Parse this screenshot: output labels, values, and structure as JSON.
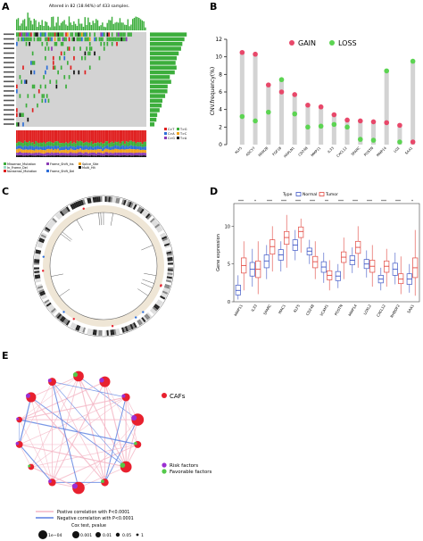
{
  "panel_letters": {
    "a": "A",
    "b": "B",
    "c": "C",
    "d": "D",
    "e": "E"
  },
  "panel_a": {
    "title": "Altered in 82 (18.94%) of 433 samples.",
    "legend": [
      "Missense_Mutation",
      "In_Frame_Del",
      "Nonsense_Mutation",
      "Frame_Shift_Ins",
      "Frame_Shift_Del",
      "Splice_Site",
      "Multi_Hit",
      "C>T",
      "T>G",
      "C>A",
      "T>C",
      "C>G",
      "T>A"
    ],
    "colors": {
      "missense": "#3cae3c",
      "nonsense": "#e02020",
      "frame_del": "#2e6fd8",
      "frame_ins": "#8a3bb5",
      "splice": "#f2a21a",
      "multi": "#111111",
      "inframe": "#9cd9c6",
      "bg": "#cfcfcf"
    }
  },
  "panel_d": {
    "legend_title": "Type",
    "legend_items": [
      "Normal",
      "Tumor"
    ],
    "colors": {
      "normal": "#3f57c6",
      "tumor": "#e2473f"
    }
  },
  "panel_e": {
    "legend_cafs": "CAFs",
    "legend_risk": "Risk factors",
    "legend_fav": "Favorable factors",
    "legend_pos": "Postive correlation with P<0.0001",
    "legend_neg": "Negative correlation with P<0.0001",
    "pval_title": "Cox test, pvalue",
    "pval_labels": [
      "1e−04",
      "0.001",
      "0.01",
      "0.05",
      "1"
    ],
    "colors": {
      "cafs": "#e8202e",
      "risk": "#9b2fd2",
      "fav": "#54c94a",
      "pos": "#f4b6c5",
      "neg": "#5a7fe0"
    }
  },
  "chart_data": [
    {
      "type": "scatter",
      "panel": "B",
      "ylabel": "CNV.frequency(%)",
      "ylim": [
        0,
        12
      ],
      "yticks": [
        0,
        2,
        4,
        6,
        8,
        10,
        12
      ],
      "legend": {
        "gain": "GAIN",
        "loss": "LOSS",
        "placement": "top-center"
      },
      "categories": [
        "KLF5",
        "ADCY7",
        "RRM2B",
        "FGF18",
        "HAPLN1",
        "CD248",
        "MMP11",
        "IL33",
        "CXCL12",
        "SPARC",
        "POSTN",
        "MMP14",
        "LOX",
        "SAA1"
      ],
      "series": [
        {
          "name": "GAIN",
          "color": "#e8486a",
          "values": [
            10.5,
            10.3,
            6.8,
            6.0,
            5.7,
            4.5,
            4.3,
            3.4,
            2.8,
            2.7,
            2.6,
            2.5,
            2.2,
            0.3
          ]
        },
        {
          "name": "LOSS",
          "color": "#5cd452",
          "values": [
            3.2,
            2.7,
            3.7,
            7.4,
            3.5,
            2.0,
            2.1,
            2.3,
            2.0,
            0.6,
            0.5,
            8.4,
            0.3,
            9.5
          ]
        }
      ]
    },
    {
      "type": "box",
      "panel": "D",
      "ylabel": "Gene expression",
      "ylim": [
        0,
        13
      ],
      "yticks": [
        0,
        5,
        10
      ],
      "categories": [
        "MMP11",
        "IL33",
        "SPARC",
        "MAC1",
        "KLF5",
        "CD248",
        "VCAM1",
        "POSTN",
        "MMP14",
        "LOXL2",
        "CXCL12",
        "RHBDF2",
        "SAA1"
      ],
      "significance": [
        "***",
        "*",
        "***",
        "***",
        "***",
        "***",
        "**",
        "***",
        "***",
        "***",
        "***",
        "***",
        "*"
      ],
      "series": [
        {
          "name": "Normal",
          "medians": [
            1.5,
            4.3,
            5.4,
            6.2,
            7.5,
            6.7,
            4.6,
            3.4,
            5.5,
            5.0,
            3.0,
            4.3,
            3.0
          ],
          "q1": [
            0.9,
            3.4,
            4.5,
            5.5,
            6.8,
            6.2,
            3.9,
            2.8,
            4.9,
            4.4,
            2.5,
            3.5,
            2.3
          ],
          "q3": [
            2.2,
            5.2,
            6.2,
            6.9,
            8.2,
            7.1,
            5.3,
            4.0,
            6.1,
            5.6,
            3.5,
            5.1,
            3.7
          ],
          "lo": [
            0.3,
            2.0,
            3.0,
            4.0,
            5.5,
            5.0,
            2.5,
            1.8,
            3.8,
            3.2,
            1.5,
            2.3,
            1.2
          ],
          "hi": [
            3.5,
            7.0,
            7.5,
            8.0,
            9.5,
            8.2,
            6.5,
            5.0,
            7.2,
            6.8,
            4.5,
            6.5,
            5.0
          ]
        },
        {
          "name": "Tumor",
          "medians": [
            4.8,
            4.3,
            7.3,
            8.5,
            9.3,
            5.3,
            3.5,
            5.9,
            7.2,
            4.7,
            4.7,
            3.0,
            4.5
          ],
          "q1": [
            3.8,
            3.2,
            6.3,
            7.6,
            8.5,
            4.5,
            2.9,
            5.2,
            6.4,
            3.9,
            3.9,
            2.4,
            3.2
          ],
          "q3": [
            5.8,
            5.4,
            8.2,
            9.3,
            9.9,
            6.0,
            4.1,
            6.6,
            8.0,
            5.5,
            5.4,
            3.7,
            5.8
          ],
          "lo": [
            1.5,
            1.0,
            4.0,
            4.5,
            6.5,
            3.0,
            1.5,
            3.0,
            4.5,
            2.0,
            2.0,
            1.0,
            0.8
          ],
          "hi": [
            8.0,
            8.0,
            10.0,
            11.5,
            11.0,
            8.0,
            5.5,
            8.5,
            10.0,
            7.5,
            7.0,
            6.0,
            9.5
          ]
        }
      ]
    }
  ]
}
